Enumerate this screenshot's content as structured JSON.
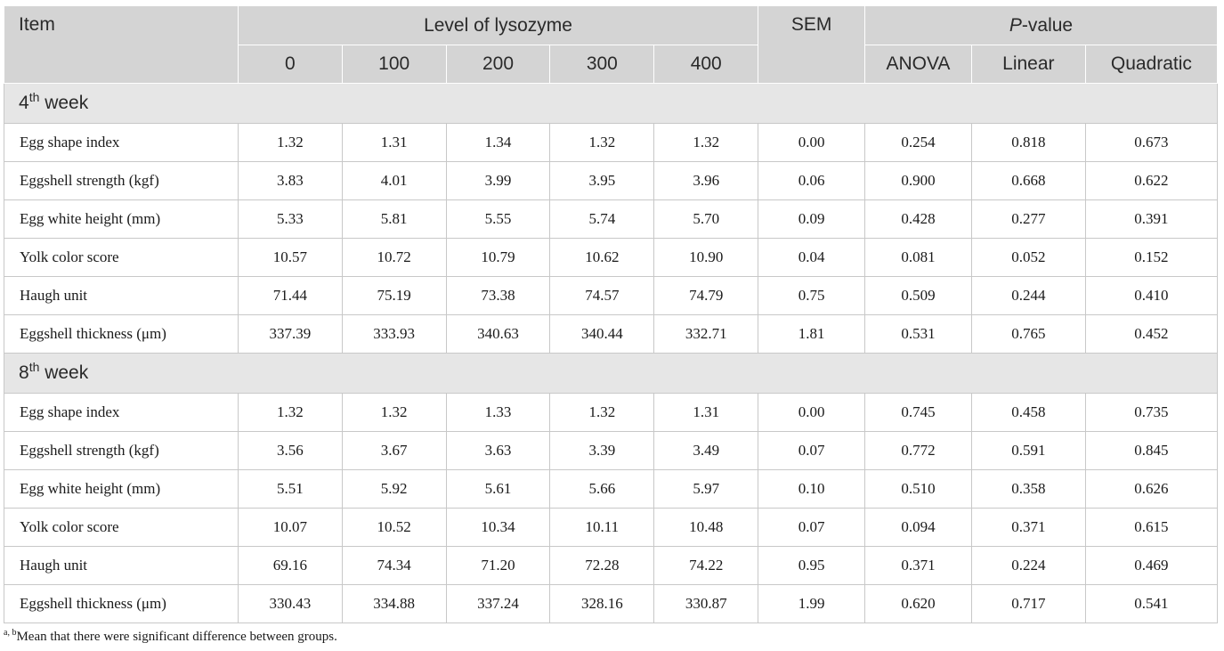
{
  "header": {
    "item": "Item",
    "level_group": "Level of lysozyme",
    "levels": [
      "0",
      "100",
      "200",
      "300",
      "400"
    ],
    "sem": "SEM",
    "pvalue_italic": "P",
    "pvalue_rest": "-value",
    "pvalue_cols": [
      "ANOVA",
      "Linear",
      "Quadratic"
    ]
  },
  "sections": [
    {
      "num": "4",
      "sup": "th",
      "rest": " week",
      "rows": [
        {
          "label": "Egg shape index",
          "values": [
            "1.32",
            "1.31",
            "1.34",
            "1.32",
            "1.32",
            "0.00",
            "0.254",
            "0.818",
            "0.673"
          ]
        },
        {
          "label": "Eggshell strength (kgf)",
          "values": [
            "3.83",
            "4.01",
            "3.99",
            "3.95",
            "3.96",
            "0.06",
            "0.900",
            "0.668",
            "0.622"
          ]
        },
        {
          "label": "Egg white height (mm)",
          "values": [
            "5.33",
            "5.81",
            "5.55",
            "5.74",
            "5.70",
            "0.09",
            "0.428",
            "0.277",
            "0.391"
          ]
        },
        {
          "label": "Yolk color score",
          "values": [
            "10.57",
            "10.72",
            "10.79",
            "10.62",
            "10.90",
            "0.04",
            "0.081",
            "0.052",
            "0.152"
          ]
        },
        {
          "label": "Haugh unit",
          "values": [
            "71.44",
            "75.19",
            "73.38",
            "74.57",
            "74.79",
            "0.75",
            "0.509",
            "0.244",
            "0.410"
          ]
        },
        {
          "label": "Eggshell thickness (μm)",
          "values": [
            "337.39",
            "333.93",
            "340.63",
            "340.44",
            "332.71",
            "1.81",
            "0.531",
            "0.765",
            "0.452"
          ]
        }
      ]
    },
    {
      "num": "8",
      "sup": "th",
      "rest": " week",
      "rows": [
        {
          "label": "Egg shape index",
          "values": [
            "1.32",
            "1.32",
            "1.33",
            "1.32",
            "1.31",
            "0.00",
            "0.745",
            "0.458",
            "0.735"
          ]
        },
        {
          "label": "Eggshell strength (kgf)",
          "values": [
            "3.56",
            "3.67",
            "3.63",
            "3.39",
            "3.49",
            "0.07",
            "0.772",
            "0.591",
            "0.845"
          ]
        },
        {
          "label": "Egg white height (mm)",
          "values": [
            "5.51",
            "5.92",
            "5.61",
            "5.66",
            "5.97",
            "0.10",
            "0.510",
            "0.358",
            "0.626"
          ]
        },
        {
          "label": "Yolk color score",
          "values": [
            "10.07",
            "10.52",
            "10.34",
            "10.11",
            "10.48",
            "0.07",
            "0.094",
            "0.371",
            "0.615"
          ]
        },
        {
          "label": "Haugh unit",
          "values": [
            "69.16",
            "74.34",
            "71.20",
            "72.28",
            "74.22",
            "0.95",
            "0.371",
            "0.224",
            "0.469"
          ]
        },
        {
          "label": "Eggshell thickness (μm)",
          "values": [
            "330.43",
            "334.88",
            "337.24",
            "328.16",
            "330.87",
            "1.99",
            "0.620",
            "0.717",
            "0.541"
          ]
        }
      ]
    }
  ],
  "footnote": {
    "sup": "a, b",
    "text": "Mean that there were significant difference between groups."
  }
}
